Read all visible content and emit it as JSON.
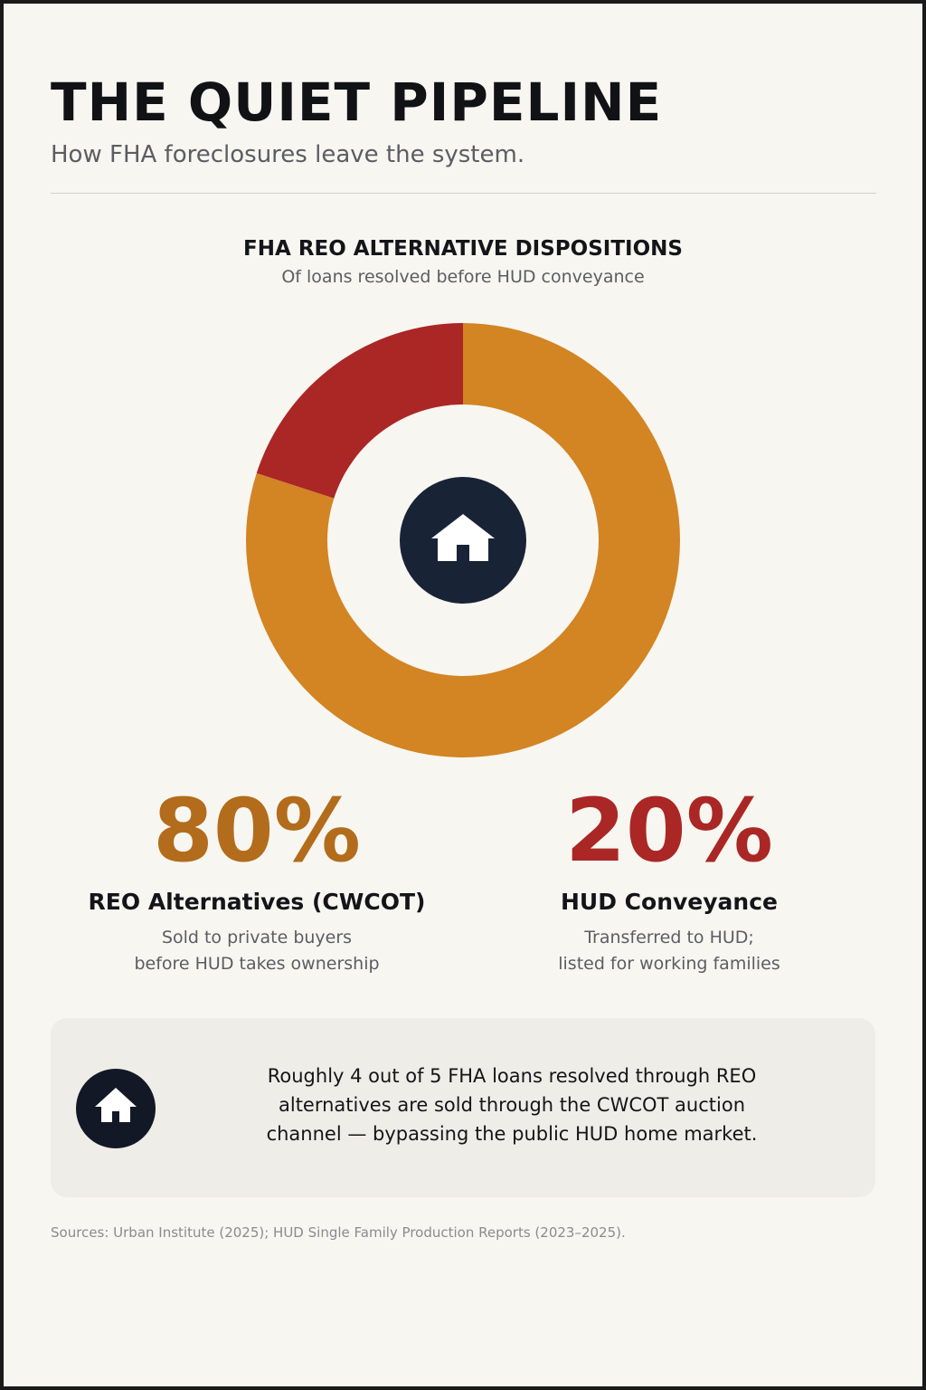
{
  "header": {
    "title": "THE QUIET PIPELINE",
    "subtitle": "How FHA foreclosures leave the system."
  },
  "chart_data": {
    "type": "pie",
    "variant": "donut",
    "title": "FHA REO ALTERNATIVE DISPOSITIONS",
    "subtitle": "Of loans resolved before HUD conveyance",
    "categories": [
      "REO Alternatives (CWCOT)",
      "HUD Conveyance"
    ],
    "values": [
      80,
      20
    ],
    "colors": [
      "#d38423",
      "#aa2725"
    ],
    "center_icon": "house-icon",
    "legend": "none"
  },
  "stats": [
    {
      "value": "80%",
      "label": "REO Alternatives (CWCOT)",
      "desc": [
        "Sold to private buyers",
        "before HUD takes ownership"
      ],
      "color": "#b36c1b"
    },
    {
      "value": "20%",
      "label": "HUD Conveyance",
      "desc": [
        "Transferred to HUD;",
        "listed for working families"
      ],
      "color": "#aa2725"
    }
  ],
  "callout": {
    "icon": "house-icon",
    "lines": [
      "Roughly 4 out of 5 FHA loans resolved through REO",
      "alternatives are sold through the CWCOT auction",
      "channel — bypassing the public HUD home market."
    ]
  },
  "footer": {
    "sources": "Sources: Urban Institute (2025); HUD Single Family Production Reports (2023–2025)."
  },
  "colors": {
    "background": "#f7f6f1",
    "navy": "#182336",
    "text": "#141519",
    "muted": "#5b5d62"
  }
}
